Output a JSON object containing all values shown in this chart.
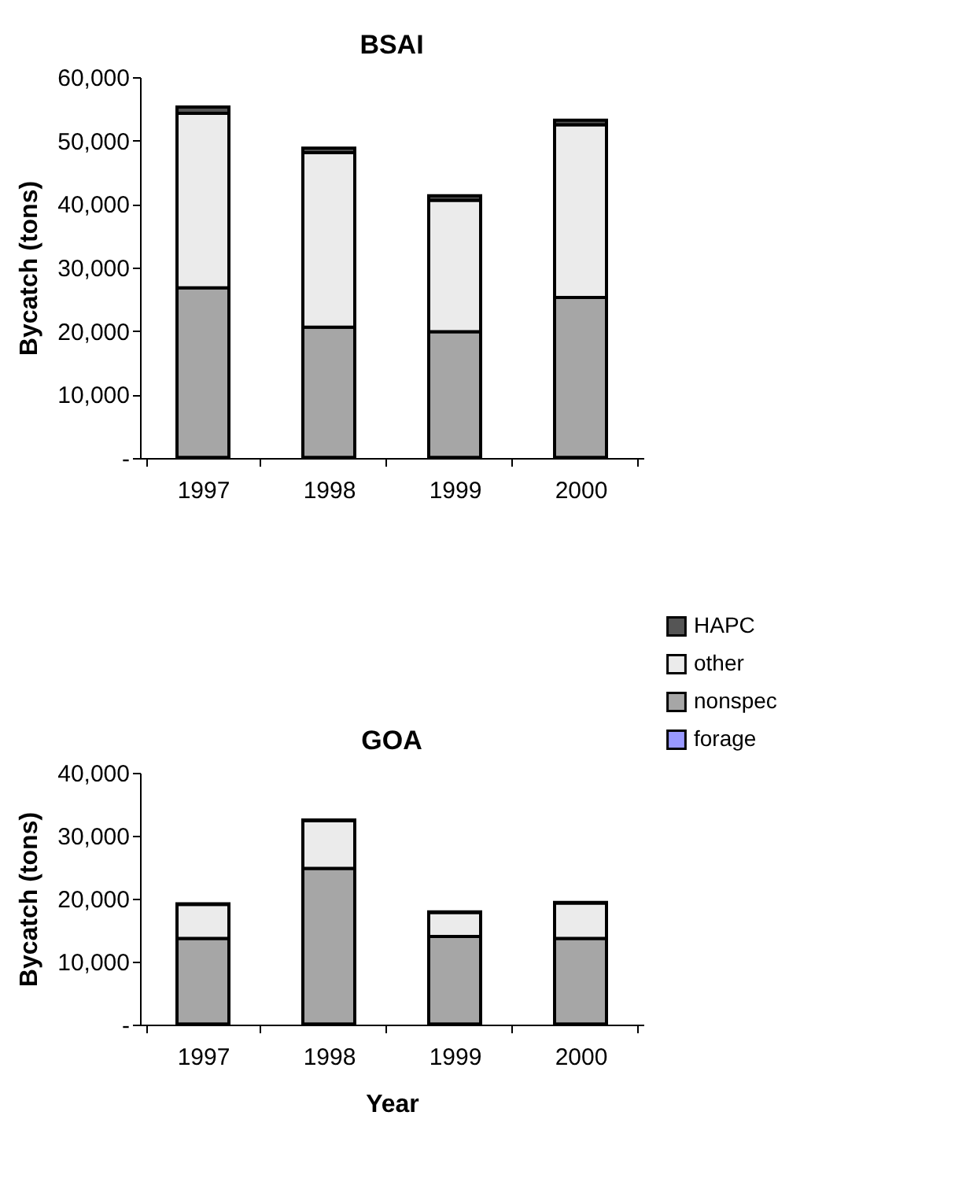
{
  "chart_data": [
    {
      "type": "bar",
      "title": "BSAI",
      "ylabel": "Bycatch (tons)",
      "stacked": true,
      "grid": false,
      "legend": "bottom right",
      "categories": [
        "1997",
        "1998",
        "1999",
        "2000"
      ],
      "ylim": [
        0,
        60000
      ],
      "yticks": [
        {
          "value": 0,
          "label": "-"
        },
        {
          "value": 10000,
          "label": "10,000"
        },
        {
          "value": 20000,
          "label": "20,000"
        },
        {
          "value": 30000,
          "label": "30,000"
        },
        {
          "value": 40000,
          "label": "40,000"
        },
        {
          "value": 50000,
          "label": "50,000"
        },
        {
          "value": 60000,
          "label": "60,000"
        }
      ],
      "series": [
        {
          "name": "forage",
          "color": "#9999ff",
          "values": [
            100,
            100,
            100,
            100
          ]
        },
        {
          "name": "nonspec",
          "color": "#a6a6a6",
          "values": [
            26700,
            20500,
            19800,
            25200
          ]
        },
        {
          "name": "other",
          "color": "#ebebeb",
          "values": [
            27500,
            27500,
            20700,
            27200
          ]
        },
        {
          "name": "HAPC",
          "color": "#555555",
          "values": [
            1000,
            700,
            700,
            700
          ]
        }
      ]
    },
    {
      "type": "bar",
      "title": "GOA",
      "ylabel": "Bycatch (tons)",
      "xlabel": "Year",
      "stacked": true,
      "grid": false,
      "categories": [
        "1997",
        "1998",
        "1999",
        "2000"
      ],
      "ylim": [
        0,
        40000
      ],
      "yticks": [
        {
          "value": 0,
          "label": "-"
        },
        {
          "value": 10000,
          "label": "10,000"
        },
        {
          "value": 20000,
          "label": "20,000"
        },
        {
          "value": 30000,
          "label": "30,000"
        },
        {
          "value": 40000,
          "label": "40,000"
        }
      ],
      "series": [
        {
          "color": "#9999ff",
          "values": [
            100,
            100,
            100,
            100
          ]
        },
        {
          "color": "#a6a6a6",
          "values": [
            13600,
            24700,
            13900,
            13600
          ]
        },
        {
          "color": "#ebebeb",
          "values": [
            5400,
            7600,
            3800,
            5600
          ]
        },
        {
          "color": "#555555",
          "values": [
            100,
            100,
            100,
            100
          ]
        }
      ]
    }
  ]
}
